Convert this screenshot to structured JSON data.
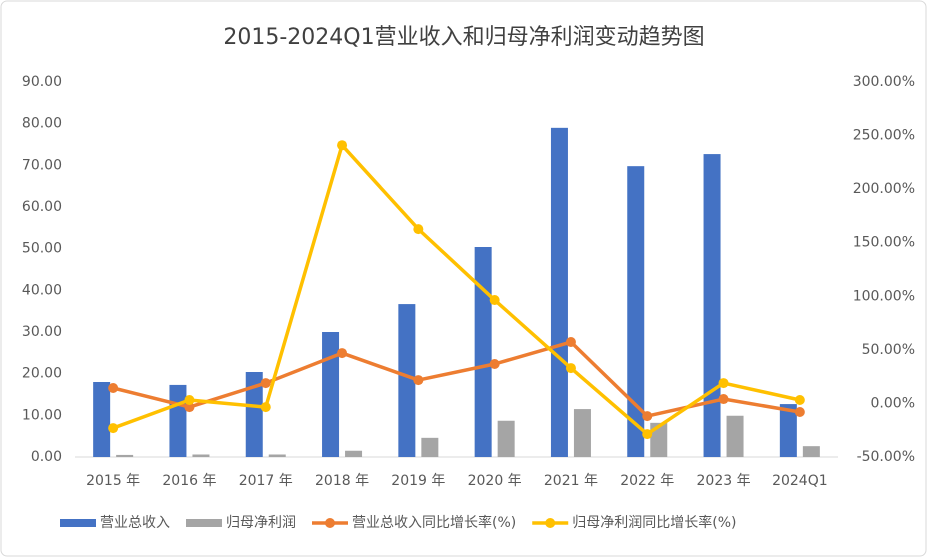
{
  "chart_data": {
    "type": "bar",
    "title": "2015-2024Q1营业收入和归母净利润变动趋势图",
    "categories": [
      "2015 年",
      "2016 年",
      "2017 年",
      "2018 年",
      "2019 年",
      "2020 年",
      "2021 年",
      "2022 年",
      "2023 年",
      "2024Q1"
    ],
    "series": [
      {
        "name": "营业总收入",
        "type": "bar",
        "color": "#4472c4",
        "values": [
          18.0,
          17.3,
          20.4,
          30.0,
          36.7,
          50.4,
          79.0,
          69.8,
          72.7,
          12.7
        ]
      },
      {
        "name": "归母净利润",
        "type": "bar",
        "color": "#a5a5a5",
        "values": [
          0.5,
          0.6,
          0.6,
          1.5,
          4.6,
          8.7,
          11.5,
          8.2,
          9.9,
          2.6
        ]
      },
      {
        "name": "营业总收入同比增长率(%)",
        "type": "line",
        "axis": "y2",
        "color": "#ed7d31",
        "values": [
          14.4,
          -3.4,
          19,
          47,
          21.8,
          36.8,
          57.3,
          -11.8,
          4.1,
          -8
        ]
      },
      {
        "name": "归母净利润同比增长率(%)",
        "type": "line",
        "axis": "y2",
        "color": "#ffc000",
        "values": [
          -23,
          3.2,
          -3.4,
          241,
          162.7,
          96.5,
          33,
          -28.6,
          19,
          3.2
        ]
      }
    ],
    "ylim": [
      0,
      90
    ],
    "yticks": [
      {
        "value": 0,
        "label": "0.00"
      },
      {
        "value": 10,
        "label": "10.00"
      },
      {
        "value": 20,
        "label": "20.00"
      },
      {
        "value": 30,
        "label": "30.00"
      },
      {
        "value": 40,
        "label": "40.00"
      },
      {
        "value": 50,
        "label": "50.00"
      },
      {
        "value": 60,
        "label": "60.00"
      },
      {
        "value": 70,
        "label": "70.00"
      },
      {
        "value": 80,
        "label": "80.00"
      },
      {
        "value": 90,
        "label": "90.00"
      }
    ],
    "y2lim": [
      -50,
      300
    ],
    "y2ticks": [
      {
        "value": -50,
        "label": "-50.00%"
      },
      {
        "value": 0,
        "label": "0.00%"
      },
      {
        "value": 50,
        "label": "50.00%"
      },
      {
        "value": 100,
        "label": "100.00%"
      },
      {
        "value": 150,
        "label": "150.00%"
      },
      {
        "value": 200,
        "label": "200.00%"
      },
      {
        "value": 250,
        "label": "250.00%"
      },
      {
        "value": 300,
        "label": "300.00%"
      }
    ],
    "legend": "bottom"
  }
}
